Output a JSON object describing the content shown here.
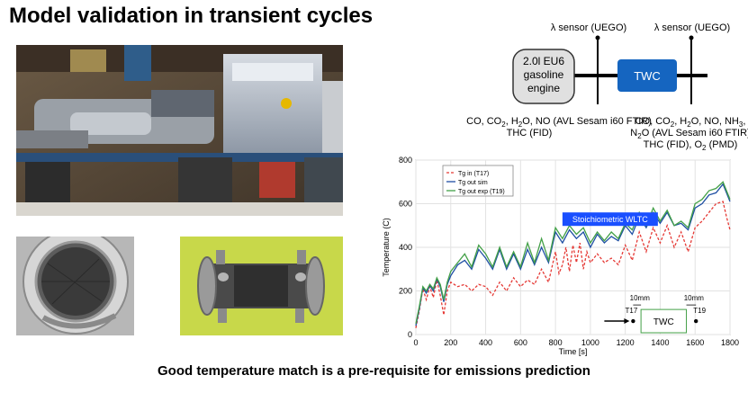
{
  "title": "Model validation in transient cycles",
  "caption": "Good temperature match is a pre-requisite for emissions prediction",
  "schematic": {
    "sensor_left": "λ sensor (UEGO)",
    "sensor_right": "λ sensor (UEGO)",
    "engine_lines": [
      "2.0l EU6",
      "gasoline",
      "engine"
    ],
    "twc_label": "TWC",
    "analyzer_left_line2": "THC (FID)",
    "analyzer_right_line3_a": "THC (FID), O",
    "analyzer_right_line3_b": "(PMD)",
    "colors": {
      "twc_fill": "#1565c0",
      "engine_fill": "#e0e0e0"
    }
  },
  "chart_data": {
    "type": "line",
    "title": "",
    "xlabel": "Time [s]",
    "ylabel": "Temperature (C)",
    "xlim": [
      0,
      1800
    ],
    "ylim": [
      0,
      800
    ],
    "x_ticks": [
      0,
      200,
      400,
      600,
      800,
      1000,
      1200,
      1400,
      1600,
      1800
    ],
    "y_ticks": [
      0,
      200,
      400,
      600,
      800
    ],
    "grid": true,
    "legend_position": "top-left",
    "annotation": "Stoichiometric WLTC",
    "inset": {
      "twc_label": "TWC",
      "t_in_label": "T17",
      "t_out_label": "T19",
      "dist_left": "10mm",
      "dist_right": "10mm"
    },
    "series": [
      {
        "name": "Tg in (T17)",
        "color": "#e53935",
        "style": "dashed",
        "x": [
          0,
          20,
          40,
          60,
          80,
          100,
          120,
          140,
          160,
          180,
          200,
          240,
          280,
          320,
          360,
          400,
          440,
          480,
          520,
          560,
          600,
          640,
          680,
          720,
          760,
          800,
          820,
          840,
          860,
          880,
          900,
          920,
          940,
          960,
          980,
          1000,
          1040,
          1080,
          1120,
          1160,
          1200,
          1240,
          1280,
          1320,
          1360,
          1400,
          1440,
          1480,
          1520,
          1560,
          1600,
          1640,
          1680,
          1720,
          1760,
          1780,
          1800
        ],
        "y": [
          30,
          110,
          210,
          160,
          220,
          170,
          250,
          180,
          90,
          200,
          240,
          220,
          230,
          200,
          230,
          220,
          180,
          240,
          200,
          260,
          220,
          250,
          230,
          300,
          240,
          380,
          280,
          320,
          400,
          290,
          410,
          330,
          420,
          300,
          380,
          330,
          370,
          330,
          350,
          320,
          410,
          340,
          470,
          380,
          490,
          420,
          500,
          400,
          470,
          380,
          490,
          520,
          560,
          600,
          610,
          540,
          480
        ]
      },
      {
        "name": "Tg out sim",
        "color": "#1e4fa3",
        "style": "solid",
        "x": [
          0,
          20,
          40,
          60,
          80,
          100,
          120,
          140,
          160,
          180,
          200,
          240,
          280,
          320,
          360,
          400,
          440,
          480,
          520,
          560,
          600,
          640,
          680,
          720,
          760,
          800,
          840,
          880,
          920,
          960,
          1000,
          1040,
          1080,
          1120,
          1160,
          1200,
          1240,
          1280,
          1320,
          1360,
          1400,
          1440,
          1480,
          1520,
          1560,
          1600,
          1640,
          1680,
          1720,
          1760,
          1780,
          1800
        ],
        "y": [
          40,
          120,
          215,
          190,
          225,
          200,
          255,
          220,
          150,
          230,
          270,
          320,
          340,
          300,
          390,
          350,
          300,
          390,
          300,
          370,
          300,
          390,
          320,
          400,
          330,
          470,
          420,
          480,
          440,
          470,
          400,
          460,
          420,
          450,
          430,
          500,
          460,
          540,
          490,
          560,
          510,
          560,
          500,
          510,
          480,
          580,
          600,
          640,
          650,
          690,
          650,
          610
        ]
      },
      {
        "name": "Tg out exp (T19)",
        "color": "#43a047",
        "style": "solid",
        "x": [
          0,
          20,
          40,
          60,
          80,
          100,
          120,
          140,
          160,
          180,
          200,
          240,
          280,
          320,
          360,
          400,
          440,
          480,
          520,
          560,
          600,
          640,
          680,
          720,
          760,
          800,
          840,
          880,
          920,
          960,
          1000,
          1040,
          1080,
          1120,
          1160,
          1200,
          1240,
          1280,
          1320,
          1360,
          1400,
          1440,
          1480,
          1520,
          1560,
          1600,
          1640,
          1680,
          1720,
          1760,
          1780,
          1800
        ],
        "y": [
          50,
          130,
          220,
          200,
          230,
          210,
          260,
          230,
          160,
          240,
          290,
          330,
          370,
          310,
          410,
          370,
          310,
          400,
          310,
          380,
          310,
          420,
          330,
          440,
          340,
          490,
          440,
          500,
          460,
          490,
          420,
          470,
          430,
          470,
          440,
          510,
          480,
          560,
          500,
          580,
          520,
          570,
          500,
          520,
          490,
          600,
          620,
          660,
          670,
          700,
          660,
          620
        ]
      }
    ]
  },
  "photos": {
    "colors": {
      "engine_cell_bg": "#5a4a3a",
      "engine_block": "#8b8f95",
      "catalyst_bg": "#c8d84a",
      "catalyst_body": "#4a4a4a",
      "cross_section_bg": "#b7b7b7"
    }
  }
}
